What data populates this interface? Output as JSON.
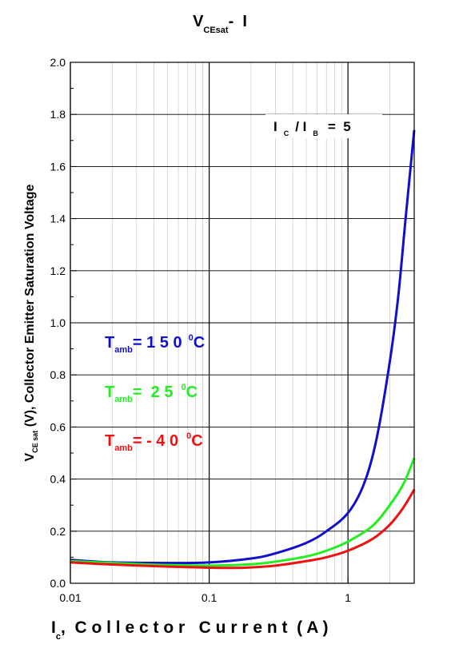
{
  "chart_data": {
    "type": "line",
    "title": {
      "main": "V",
      "sub": "CEsat",
      "rest": "-  I"
    },
    "xlabel": {
      "main": "I",
      "sub": "c",
      "rest": ",  C o l l e c t o r   C u r r e n t  ( A )"
    },
    "ylabel": {
      "main": "V",
      "sub": "CE sat",
      "rest": " (V), Collector Emitter Saturation Voltage"
    },
    "x_scale": "log",
    "xlim": [
      0.01,
      3.0
    ],
    "ylim": [
      0.0,
      2.0
    ],
    "x_ticks": [
      0.01,
      0.1,
      1
    ],
    "x_tick_labels": [
      "0.01",
      "0.1",
      "1"
    ],
    "y_ticks": [
      0.0,
      0.2,
      0.4,
      0.6,
      0.8,
      1.0,
      1.2,
      1.4,
      1.6,
      1.8,
      2.0
    ],
    "y_tick_labels": [
      "0.0",
      "0.2",
      "0.4",
      "0.6",
      "0.8",
      "1.0",
      "1.2",
      "1.4",
      "1.6",
      "1.8",
      "2.0"
    ],
    "grid": true,
    "condition": {
      "a": "I",
      "a_sub": "C",
      "b": "/ I",
      "b_sub": "B",
      "rest": "=  5"
    },
    "series": [
      {
        "label": {
          "main": "T",
          "sub": "amb",
          "rest": "= 1 5 0",
          "sup": "0",
          "unit": "C"
        },
        "color": "#1010cc",
        "x": [
          0.01,
          0.02,
          0.05,
          0.1,
          0.2,
          0.3,
          0.5,
          0.7,
          1.0,
          1.3,
          1.6,
          2.0,
          2.3,
          2.6,
          3.0
        ],
        "y": [
          0.09,
          0.08,
          0.078,
          0.08,
          0.095,
          0.115,
          0.155,
          0.2,
          0.27,
          0.38,
          0.55,
          0.85,
          1.1,
          1.4,
          1.74
        ]
      },
      {
        "label": {
          "main": "T",
          "sub": "amb",
          "rest": "=  2 5",
          "sup": "0",
          "unit": "C"
        },
        "color": "#22ee22",
        "x": [
          0.01,
          0.02,
          0.05,
          0.1,
          0.2,
          0.3,
          0.5,
          0.7,
          1.0,
          1.5,
          2.0,
          2.5,
          3.0
        ],
        "y": [
          0.085,
          0.078,
          0.07,
          0.068,
          0.073,
          0.083,
          0.103,
          0.125,
          0.16,
          0.22,
          0.3,
          0.38,
          0.48
        ]
      },
      {
        "label": {
          "main": "T",
          "sub": "amb",
          "rest": "= - 4 0",
          "sup": "0",
          "unit": "C"
        },
        "color": "#ee1111",
        "x": [
          0.01,
          0.02,
          0.05,
          0.1,
          0.15,
          0.2,
          0.3,
          0.5,
          0.7,
          1.0,
          1.5,
          2.0,
          2.5,
          3.0
        ],
        "y": [
          0.08,
          0.072,
          0.064,
          0.06,
          0.059,
          0.061,
          0.068,
          0.085,
          0.1,
          0.125,
          0.17,
          0.225,
          0.29,
          0.36
        ]
      }
    ]
  }
}
